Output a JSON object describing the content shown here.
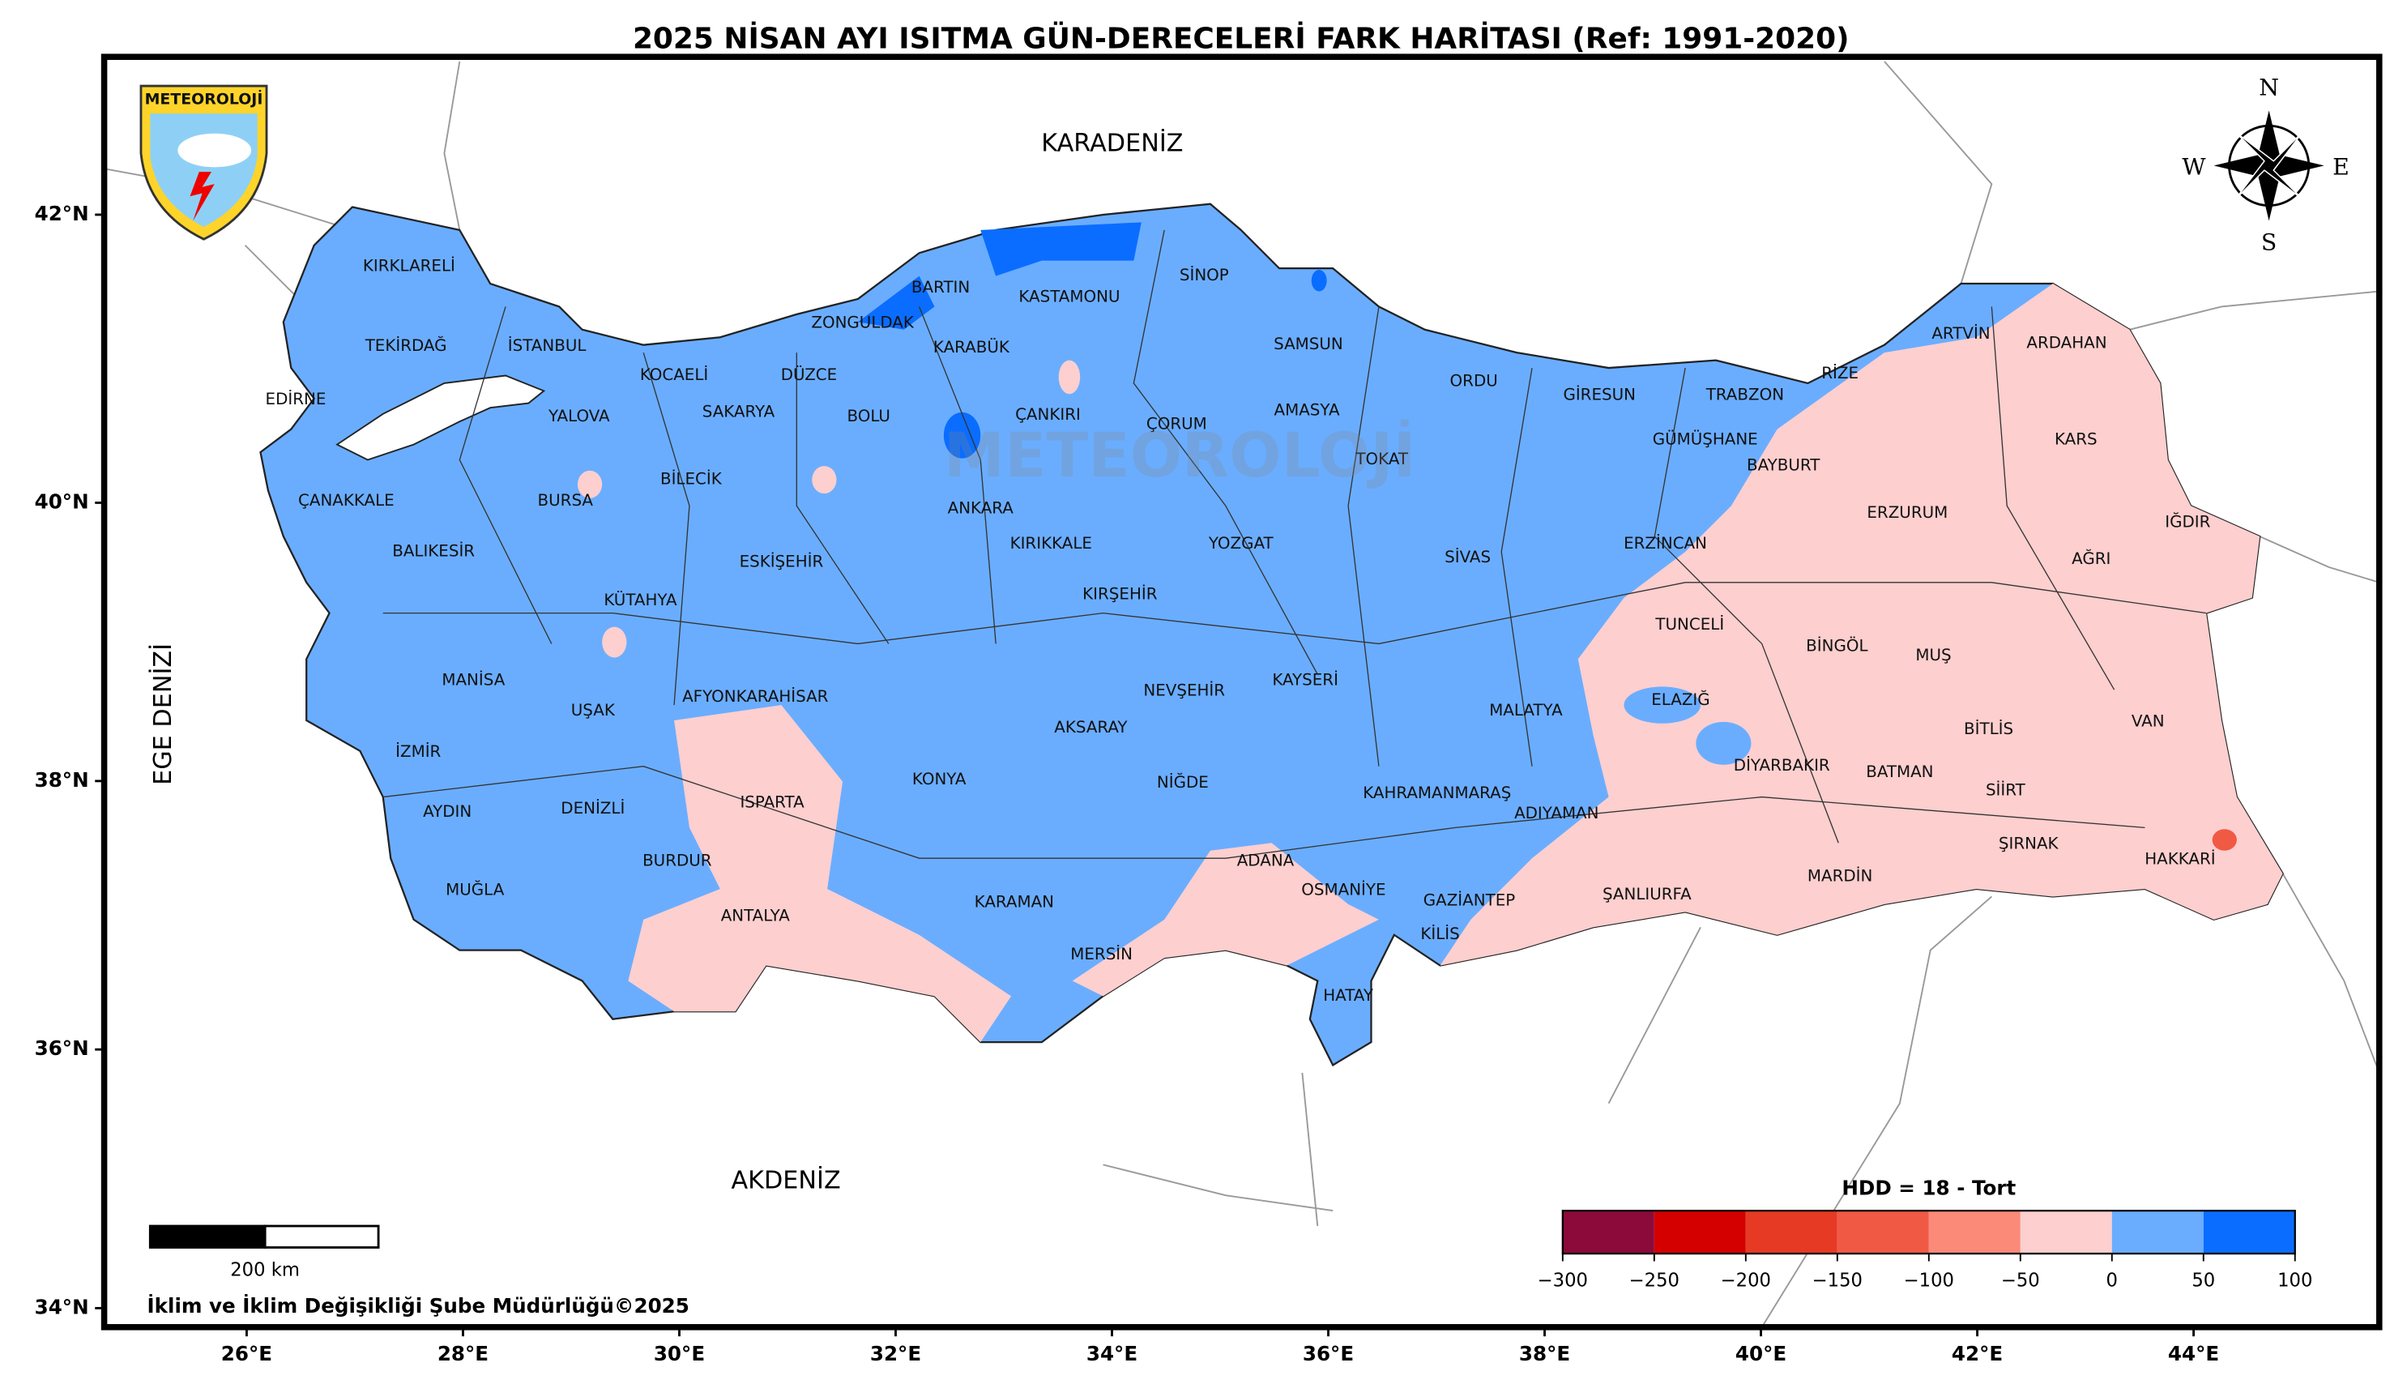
{
  "title": "2025 NİSAN AYI ISITMA GÜN-DERECELERİ FARK HARİTASI (Ref: 1991-2020)",
  "logo_text": "METEOROLOJİ",
  "watermark": "METEOROLOJİ",
  "compass": {
    "north": "N",
    "east": "E",
    "south": "S",
    "west": "W"
  },
  "map": {
    "seas": [
      "KARADENİZ",
      "AKDENİZ",
      "EGE DENİZİ"
    ],
    "provinces": [
      "KIRKLARELİ",
      "TEKİRDAĞ",
      "İSTANBUL",
      "EDİRNE",
      "YALOVA",
      "KOCAELİ",
      "SAKARYA",
      "DÜZCE",
      "ZONGULDAK",
      "BARTIN",
      "KARABÜK",
      "KASTAMONU",
      "SİNOP",
      "SAMSUN",
      "BOLU",
      "ÇANKIRI",
      "ÇORUM",
      "AMASYA",
      "ORDU",
      "GİRESUN",
      "TRABZON",
      "RİZE",
      "ARTVİN",
      "ARDAHAN",
      "KARS",
      "GÜMÜŞHANE",
      "BAYBURT",
      "ERZURUM",
      "IĞDIR",
      "AĞRI",
      "ERZİNCAN",
      "TOKAT",
      "SİVAS",
      "YOZGAT",
      "KIRIKKALE",
      "ANKARA",
      "ÇANAKKALE",
      "BURSA",
      "BİLECİK",
      "ESKİŞEHİR",
      "BALIKESİR",
      "KÜTAHYA",
      "KIRŞEHİR",
      "TUNCELİ",
      "BİNGÖL",
      "MUŞ",
      "KAYSERİ",
      "MANİSA",
      "UŞAK",
      "AFYONKARAHİSAR",
      "NEVŞEHİR",
      "ELAZIĞ",
      "MALATYA",
      "BİTLİS",
      "VAN",
      "İZMİR",
      "AKSARAY",
      "DİYARBAKIR",
      "BATMAN",
      "SİİRT",
      "KONYA",
      "ISPARTA",
      "NİĞDE",
      "KAHRAMANMARAŞ",
      "ADIYAMAN",
      "AYDIN",
      "DENİZLİ",
      "BURDUR",
      "ŞIRNAK",
      "HAKKARİ",
      "ADANA",
      "MARDİN",
      "MUĞLA",
      "OSMANİYE",
      "GAZİANTEP",
      "ŞANLIURFA",
      "KARAMAN",
      "ANTALYA",
      "KİLİS",
      "MERSİN",
      "HATAY"
    ],
    "lat_ticks": [
      {
        "value": 42,
        "label": "42°N"
      },
      {
        "value": 40,
        "label": "40°N"
      },
      {
        "value": 38,
        "label": "38°N"
      },
      {
        "value": 36,
        "label": "36°N"
      },
      {
        "value": 34,
        "label": "34°N"
      }
    ],
    "lon_ticks": [
      {
        "value": 26,
        "label": "26°E"
      },
      {
        "value": 28,
        "label": "28°E"
      },
      {
        "value": 30,
        "label": "30°E"
      },
      {
        "value": 32,
        "label": "32°E"
      },
      {
        "value": 34,
        "label": "34°E"
      },
      {
        "value": 36,
        "label": "36°E"
      },
      {
        "value": 38,
        "label": "38°E"
      },
      {
        "value": 40,
        "label": "40°E"
      },
      {
        "value": 42,
        "label": "42°E"
      },
      {
        "value": 44,
        "label": "44°E"
      }
    ]
  },
  "colorbar": {
    "label": "HDD = 18 - Tort",
    "lim": [
      -300,
      100
    ],
    "colors": [
      "#8b0a3a",
      "#d40000",
      "#e63a24",
      "#f05a45",
      "#fb8a78",
      "#fdcfcf",
      "#6aadff",
      "#0a6dff"
    ],
    "ticks": [
      {
        "value": -300,
        "label": "−300"
      },
      {
        "value": -250,
        "label": "−250"
      },
      {
        "value": -200,
        "label": "−200"
      },
      {
        "value": -150,
        "label": "−150"
      },
      {
        "value": -100,
        "label": "−100"
      },
      {
        "value": -50,
        "label": "−50"
      },
      0,
      50,
      100
    ]
  },
  "scale_bar": {
    "label": "200 km"
  },
  "credit": "İklim ve İklim Değişikliği Şube Müdürlüğü©2025"
}
